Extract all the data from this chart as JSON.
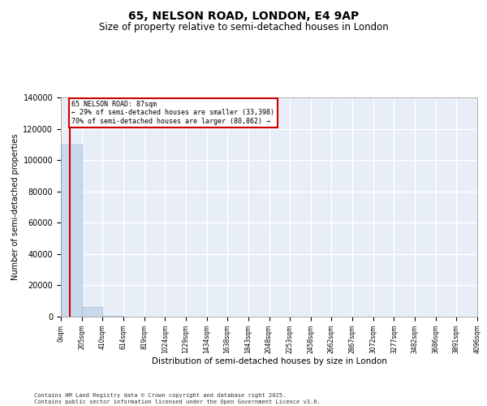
{
  "title": "65, NELSON ROAD, LONDON, E4 9AP",
  "subtitle": "Size of property relative to semi-detached houses in London",
  "xlabel": "Distribution of semi-detached houses by size in London",
  "ylabel": "Number of semi-detached properties",
  "property_size": 87,
  "annotation_title": "65 NELSON ROAD: 87sqm",
  "annotation_line1": "← 29% of semi-detached houses are smaller (33,398)",
  "annotation_line2": "70% of semi-detached houses are larger (80,862) →",
  "footer": "Contains HM Land Registry data © Crown copyright and database right 2025.\nContains public sector information licensed under the Open Government Licence v3.0.",
  "bin_edges": [
    0,
    205,
    410,
    614,
    819,
    1024,
    1229,
    1434,
    1638,
    1843,
    2048,
    2253,
    2458,
    2662,
    2867,
    3072,
    3277,
    3482,
    3686,
    3891,
    4096
  ],
  "bin_labels": [
    "0sqm",
    "205sqm",
    "410sqm",
    "614sqm",
    "819sqm",
    "1024sqm",
    "1229sqm",
    "1434sqm",
    "1638sqm",
    "1843sqm",
    "2048sqm",
    "2253sqm",
    "2458sqm",
    "2662sqm",
    "2867sqm",
    "3072sqm",
    "3277sqm",
    "3482sqm",
    "3686sqm",
    "3891sqm",
    "4096sqm"
  ],
  "bar_heights": [
    110000,
    6000,
    500,
    100,
    30,
    10,
    5,
    2,
    1,
    0,
    0,
    0,
    0,
    0,
    0,
    0,
    0,
    0,
    0,
    0
  ],
  "bar_color": "#c9d9ec",
  "bar_edge_color": "#a0b8d8",
  "vline_color": "#cc0000",
  "ylim": [
    0,
    140000
  ],
  "yticks": [
    0,
    20000,
    40000,
    60000,
    80000,
    100000,
    120000,
    140000
  ],
  "background_color": "#e8eef7",
  "grid_color": "#ffffff",
  "title_fontsize": 10,
  "subtitle_fontsize": 8.5
}
